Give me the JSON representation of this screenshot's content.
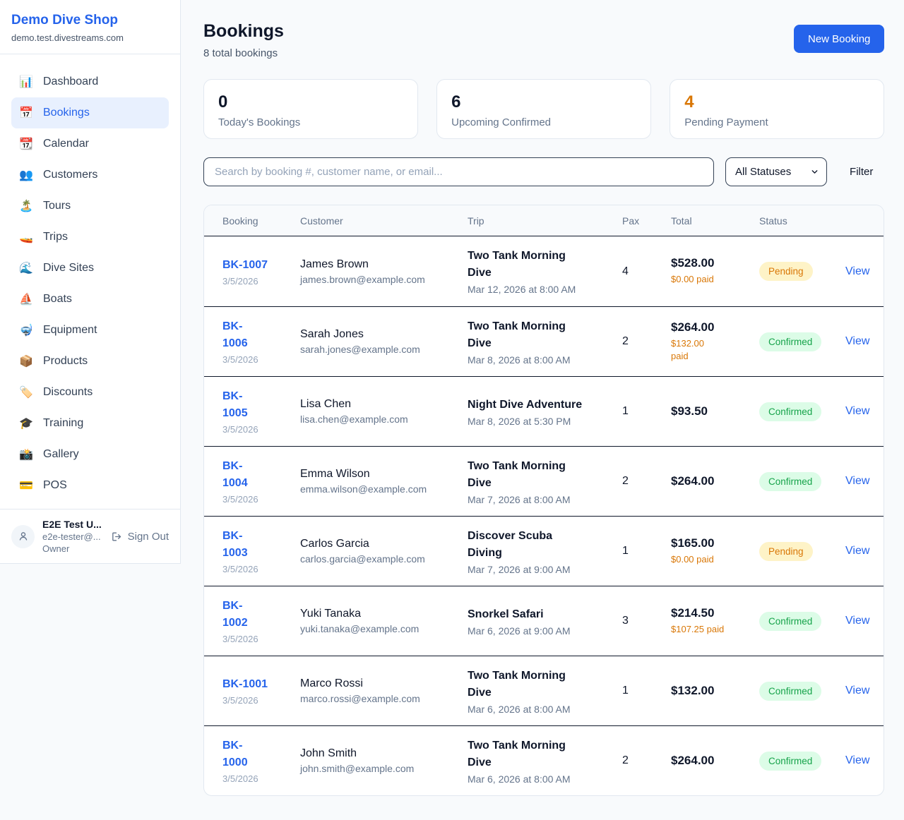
{
  "sidebar": {
    "brand": "Demo Dive Shop",
    "domain": "demo.test.divestreams.com",
    "items": [
      {
        "icon": "bar-chart",
        "glyph": "📊",
        "label": "Dashboard",
        "active": false
      },
      {
        "icon": "calendar",
        "glyph": "📅",
        "label": "Bookings",
        "active": true
      },
      {
        "icon": "tear-off-calendar",
        "glyph": "📆",
        "label": "Calendar",
        "active": false
      },
      {
        "icon": "people",
        "glyph": "👥",
        "label": "Customers",
        "active": false
      },
      {
        "icon": "desert-island",
        "glyph": "🏝️",
        "label": "Tours",
        "active": false
      },
      {
        "icon": "speedboat",
        "glyph": "🚤",
        "label": "Trips",
        "active": false
      },
      {
        "icon": "water-wave",
        "glyph": "🌊",
        "label": "Dive Sites",
        "active": false
      },
      {
        "icon": "sailboat",
        "glyph": "⛵",
        "label": "Boats",
        "active": false
      },
      {
        "icon": "diving-mask",
        "glyph": "🤿",
        "label": "Equipment",
        "active": false
      },
      {
        "icon": "package",
        "glyph": "📦",
        "label": "Products",
        "active": false
      },
      {
        "icon": "label-tag",
        "glyph": "🏷️",
        "label": "Discounts",
        "active": false
      },
      {
        "icon": "graduation-cap",
        "glyph": "🎓",
        "label": "Training",
        "active": false
      },
      {
        "icon": "camera-flash",
        "glyph": "📸",
        "label": "Gallery",
        "active": false
      },
      {
        "icon": "credit-card",
        "glyph": "💳",
        "label": "POS",
        "active": false
      }
    ],
    "user": {
      "name": "E2E Test U...",
      "email": "e2e-tester@...",
      "role": "Owner",
      "sign_out_label": "Sign Out"
    }
  },
  "header": {
    "title": "Bookings",
    "subtitle": "8 total bookings",
    "new_booking_label": "New Booking"
  },
  "stats": [
    {
      "value": "0",
      "label": "Today's Bookings",
      "value_color": "#0f172a"
    },
    {
      "value": "6",
      "label": "Upcoming Confirmed",
      "value_color": "#0f172a"
    },
    {
      "value": "4",
      "label": "Pending Payment",
      "value_color": "#d97706"
    }
  ],
  "toolbar": {
    "search_placeholder": "Search by booking #, customer name, or email...",
    "status_filter_selected": "All Statuses",
    "filter_label": "Filter"
  },
  "table": {
    "columns": [
      "Booking",
      "Customer",
      "Trip",
      "Pax",
      "Total",
      "Status"
    ],
    "view_label": "View",
    "rows": [
      {
        "id": "BK-1007",
        "id_wrapped": false,
        "date": "3/5/2026",
        "customer": "James Brown",
        "email": "james.brown@example.com",
        "trip": "Two Tank Morning Dive",
        "trip_wrapped": true,
        "datetime": "Mar 12, 2026 at 8:00 AM",
        "pax": "4",
        "total": "$528.00",
        "paid": "$0.00 paid",
        "paid_wrapped": false,
        "status": "Pending"
      },
      {
        "id": "BK-1006",
        "id_wrapped": true,
        "date": "3/5/2026",
        "customer": "Sarah Jones",
        "email": "sarah.jones@example.com",
        "trip": "Two Tank Morning Dive",
        "trip_wrapped": true,
        "datetime": "Mar 8, 2026 at 8:00 AM",
        "pax": "2",
        "total": "$264.00",
        "paid": "$132.00 paid",
        "paid_wrapped": true,
        "status": "Confirmed"
      },
      {
        "id": "BK-1005",
        "id_wrapped": true,
        "date": "3/5/2026",
        "customer": "Lisa Chen",
        "email": "lisa.chen@example.com",
        "trip": "Night Dive Adventure",
        "trip_wrapped": false,
        "datetime": "Mar 8, 2026 at 5:30 PM",
        "pax": "1",
        "total": "$93.50",
        "paid": null,
        "paid_wrapped": false,
        "status": "Confirmed"
      },
      {
        "id": "BK-1004",
        "id_wrapped": true,
        "date": "3/5/2026",
        "customer": "Emma Wilson",
        "email": "emma.wilson@example.com",
        "trip": "Two Tank Morning Dive",
        "trip_wrapped": true,
        "datetime": "Mar 7, 2026 at 8:00 AM",
        "pax": "2",
        "total": "$264.00",
        "paid": null,
        "paid_wrapped": false,
        "status": "Confirmed"
      },
      {
        "id": "BK-1003",
        "id_wrapped": true,
        "date": "3/5/2026",
        "customer": "Carlos Garcia",
        "email": "carlos.garcia@example.com",
        "trip": "Discover Scuba Diving",
        "trip_wrapped": true,
        "datetime": "Mar 7, 2026 at 9:00 AM",
        "pax": "1",
        "total": "$165.00",
        "paid": "$0.00 paid",
        "paid_wrapped": false,
        "status": "Pending"
      },
      {
        "id": "BK-1002",
        "id_wrapped": true,
        "date": "3/5/2026",
        "customer": "Yuki Tanaka",
        "email": "yuki.tanaka@example.com",
        "trip": "Snorkel Safari",
        "trip_wrapped": false,
        "datetime": "Mar 6, 2026 at 9:00 AM",
        "pax": "3",
        "total": "$214.50",
        "paid": "$107.25 paid",
        "paid_wrapped": false,
        "status": "Confirmed"
      },
      {
        "id": "BK-1001",
        "id_wrapped": false,
        "date": "3/5/2026",
        "customer": "Marco Rossi",
        "email": "marco.rossi@example.com",
        "trip": "Two Tank Morning Dive",
        "trip_wrapped": true,
        "datetime": "Mar 6, 2026 at 8:00 AM",
        "pax": "1",
        "total": "$132.00",
        "paid": null,
        "paid_wrapped": false,
        "status": "Confirmed"
      },
      {
        "id": "BK-1000",
        "id_wrapped": true,
        "date": "3/5/2026",
        "customer": "John Smith",
        "email": "john.smith@example.com",
        "trip": "Two Tank Morning Dive",
        "trip_wrapped": true,
        "datetime": "Mar 6, 2026 at 8:00 AM",
        "pax": "2",
        "total": "$264.00",
        "paid": null,
        "paid_wrapped": false,
        "status": "Confirmed"
      }
    ]
  },
  "colors": {
    "accent_blue": "#2563eb",
    "pending_text": "#d97706",
    "pending_bg": "#fef3c7",
    "confirmed_text": "#16a34a",
    "confirmed_bg": "#dcfce7",
    "paid_orange": "#d97706",
    "sidebar_active_bg": "#e8f0fe",
    "page_bg": "#f8fafc",
    "row_divider": "#0f172a"
  }
}
